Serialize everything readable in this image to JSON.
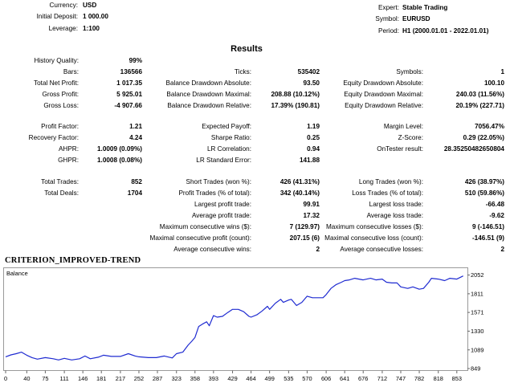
{
  "header": {
    "currency_label": "Currency:",
    "currency": "USD",
    "deposit_label": "Initial Deposit:",
    "deposit": "1 000.00",
    "leverage_label": "Leverage:",
    "leverage": "1:100",
    "expert_label": "Expert:",
    "expert": "Stable Trading",
    "symbol_label": "Symbol:",
    "symbol": "EURUSD",
    "period_label": "Period:",
    "period": "H1 (2000.01.01 - 2022.01.01)"
  },
  "results_title": "Results",
  "stats": {
    "history_quality": [
      "History Quality:",
      "99%"
    ],
    "bars": [
      "Bars:",
      "136566"
    ],
    "total_net_profit": [
      "Total Net Profit:",
      "1 017.35"
    ],
    "gross_profit": [
      "Gross Profit:",
      "5 925.01"
    ],
    "gross_loss": [
      "Gross Loss:",
      "-4 907.66"
    ],
    "ticks": [
      "Ticks:",
      "535402"
    ],
    "balance_dd_abs": [
      "Balance Drawdown Absolute:",
      "93.50"
    ],
    "balance_dd_max": [
      "Balance Drawdown Maximal:",
      "208.88 (10.12%)"
    ],
    "balance_dd_rel": [
      "Balance Drawdown Relative:",
      "17.39% (190.81)"
    ],
    "symbols": [
      "Symbols:",
      "1"
    ],
    "equity_dd_abs": [
      "Equity Drawdown Absolute:",
      "100.10"
    ],
    "equity_dd_max": [
      "Equity Drawdown Maximal:",
      "240.03 (11.56%)"
    ],
    "equity_dd_rel": [
      "Equity Drawdown Relative:",
      "20.19% (227.71)"
    ],
    "profit_factor": [
      "Profit Factor:",
      "1.21"
    ],
    "recovery_factor": [
      "Recovery Factor:",
      "4.24"
    ],
    "ahpr": [
      "AHPR:",
      "1.0009 (0.09%)"
    ],
    "ghpr": [
      "GHPR:",
      "1.0008 (0.08%)"
    ],
    "expected_payoff": [
      "Expected Payoff:",
      "1.19"
    ],
    "sharpe_ratio": [
      "Sharpe Ratio:",
      "0.25"
    ],
    "lr_correlation": [
      "LR Correlation:",
      "0.94"
    ],
    "lr_std_error": [
      "LR Standard Error:",
      "141.88"
    ],
    "margin_level": [
      "Margin Level:",
      "7056.47%"
    ],
    "z_score": [
      "Z-Score:",
      "0.29 (22.05%)"
    ],
    "ontester_result": [
      "OnTester result:",
      "28.35250482650804"
    ],
    "total_trades": [
      "Total Trades:",
      "852"
    ],
    "total_deals": [
      "Total Deals:",
      "1704"
    ],
    "short_trades": [
      "Short Trades (won %):",
      "426 (41.31%)"
    ],
    "profit_trades": [
      "Profit Trades (% of total):",
      "342 (40.14%)"
    ],
    "largest_profit": [
      "Largest profit trade:",
      "99.91"
    ],
    "avg_profit": [
      "Average profit trade:",
      "17.32"
    ],
    "max_consec_wins": [
      "Maximum consecutive wins ($):",
      "7 (129.97)"
    ],
    "max_consec_profit": [
      "Maximal consecutive profit (count):",
      "207.15 (6)"
    ],
    "avg_consec_wins": [
      "Average consecutive wins:",
      "2"
    ],
    "long_trades": [
      "Long Trades (won %):",
      "426 (38.97%)"
    ],
    "loss_trades": [
      "Loss Trades (% of total):",
      "510 (59.86%)"
    ],
    "largest_loss": [
      "Largest loss trade:",
      "-66.48"
    ],
    "avg_loss": [
      "Average loss trade:",
      "-9.62"
    ],
    "max_consec_losses": [
      "Maximum consecutive losses ($):",
      "9 (-146.51)"
    ],
    "max_consec_loss": [
      "Maximal consecutive loss (count):",
      "-146.51 (9)"
    ],
    "avg_consec_losses": [
      "Average consecutive losses:",
      "2"
    ]
  },
  "criterion_title": "CRITERION_IMPROVED-TREND",
  "chart_data": {
    "type": "line",
    "title": "Balance",
    "series": [],
    "x_ticks": [
      0,
      40,
      75,
      111,
      146,
      181,
      217,
      252,
      287,
      323,
      358,
      393,
      429,
      464,
      499,
      535,
      570,
      606,
      641,
      676,
      712,
      747,
      782,
      818,
      853
    ],
    "y_ticks": [
      849,
      1089,
      1330,
      1571,
      1811,
      2052
    ],
    "xlim": [
      0,
      870
    ],
    "ylim": [
      849,
      2130
    ],
    "grid": false,
    "color": "#1f2bd1",
    "balance_points": [
      [
        0,
        1000
      ],
      [
        10,
        1025
      ],
      [
        20,
        1040
      ],
      [
        30,
        1060
      ],
      [
        40,
        1020
      ],
      [
        50,
        990
      ],
      [
        60,
        970
      ],
      [
        75,
        990
      ],
      [
        90,
        975
      ],
      [
        100,
        960
      ],
      [
        111,
        980
      ],
      [
        125,
        960
      ],
      [
        140,
        975
      ],
      [
        150,
        1010
      ],
      [
        160,
        975
      ],
      [
        175,
        995
      ],
      [
        185,
        1020
      ],
      [
        200,
        1005
      ],
      [
        217,
        1005
      ],
      [
        232,
        1040
      ],
      [
        245,
        1010
      ],
      [
        252,
        1000
      ],
      [
        270,
        990
      ],
      [
        285,
        990
      ],
      [
        300,
        1010
      ],
      [
        315,
        985
      ],
      [
        323,
        1040
      ],
      [
        335,
        1060
      ],
      [
        345,
        1150
      ],
      [
        352,
        1200
      ],
      [
        358,
        1250
      ],
      [
        365,
        1390
      ],
      [
        372,
        1420
      ],
      [
        380,
        1450
      ],
      [
        385,
        1400
      ],
      [
        393,
        1530
      ],
      [
        400,
        1510
      ],
      [
        410,
        1520
      ],
      [
        420,
        1570
      ],
      [
        429,
        1610
      ],
      [
        440,
        1610
      ],
      [
        450,
        1580
      ],
      [
        460,
        1520
      ],
      [
        464,
        1510
      ],
      [
        475,
        1540
      ],
      [
        485,
        1590
      ],
      [
        495,
        1650
      ],
      [
        499,
        1610
      ],
      [
        510,
        1690
      ],
      [
        520,
        1740
      ],
      [
        525,
        1700
      ],
      [
        535,
        1730
      ],
      [
        540,
        1740
      ],
      [
        550,
        1660
      ],
      [
        560,
        1700
      ],
      [
        570,
        1780
      ],
      [
        580,
        1760
      ],
      [
        590,
        1760
      ],
      [
        600,
        1760
      ],
      [
        606,
        1800
      ],
      [
        615,
        1880
      ],
      [
        625,
        1930
      ],
      [
        635,
        1960
      ],
      [
        641,
        1980
      ],
      [
        650,
        1990
      ],
      [
        660,
        2010
      ],
      [
        676,
        1990
      ],
      [
        690,
        2010
      ],
      [
        700,
        1990
      ],
      [
        712,
        2000
      ],
      [
        720,
        1960
      ],
      [
        730,
        1950
      ],
      [
        740,
        1950
      ],
      [
        747,
        1900
      ],
      [
        760,
        1880
      ],
      [
        770,
        1900
      ],
      [
        782,
        1870
      ],
      [
        790,
        1880
      ],
      [
        800,
        1960
      ],
      [
        805,
        2010
      ],
      [
        818,
        2000
      ],
      [
        830,
        1980
      ],
      [
        840,
        2010
      ],
      [
        853,
        2000
      ],
      [
        865,
        2040
      ]
    ]
  }
}
